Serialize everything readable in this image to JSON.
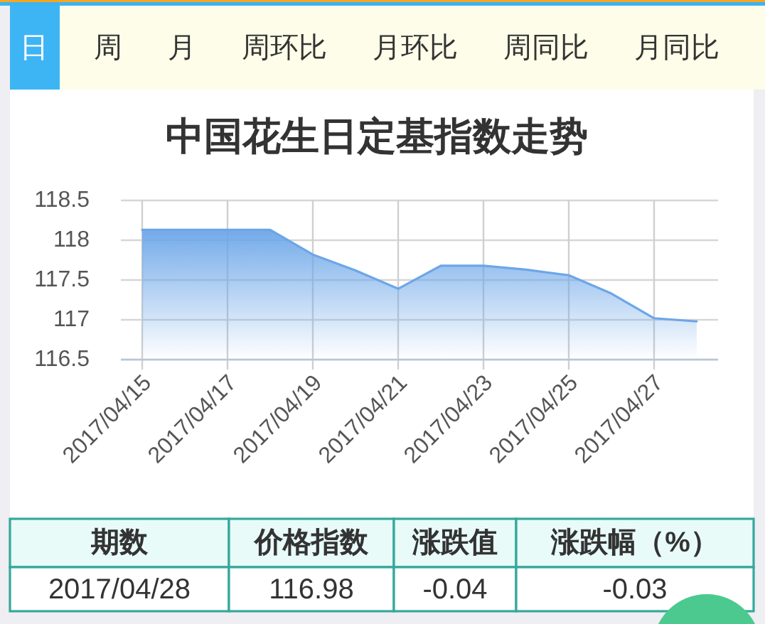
{
  "chart_data": [
    {
      "type": "other",
      "annotations": [
        "日",
        "周",
        "月",
        "周环比",
        "月环比",
        "周同比",
        "月同比"
      ]
    },
    {
      "type": "area",
      "title": "中国花生日定基指数走势",
      "x": [
        "2017-04-15",
        "2017-04-16",
        "2017-04-17",
        "2017-04-18",
        "2017-04-19",
        "2017-04-20",
        "2017-04-21",
        "2017-04-22",
        "2017-04-23",
        "2017-04-24",
        "2017-04-25",
        "2017-04-26",
        "2017-04-27",
        "2017-04-28"
      ],
      "series": [
        {
          "color": "#6ca6e8",
          "values": [
            118.13,
            118.13,
            118.13,
            118.13,
            117.82,
            117.62,
            117.39,
            117.68,
            117.68,
            117.63,
            117.56,
            117.33,
            117.02,
            116.98
          ]
        }
      ],
      "xlim": [
        "2017-04-14T12:00",
        "2017-04-28T12:00"
      ],
      "xticks": [
        {
          "value": "2017-04-15",
          "label": "2017/04/15"
        },
        {
          "value": "2017-04-17",
          "label": "2017/04/17"
        },
        {
          "value": "2017-04-19",
          "label": "2017/04/19"
        },
        {
          "value": "2017-04-21",
          "label": "2017/04/21"
        },
        {
          "value": "2017-04-23",
          "label": "2017/04/23"
        },
        {
          "value": "2017-04-25",
          "label": "2017/04/25"
        },
        {
          "value": "2017-04-27",
          "label": "2017/04/27"
        }
      ],
      "ylim": [
        116.5,
        118.5
      ],
      "yticks": [
        116.5,
        117,
        117.5,
        118,
        118.5
      ],
      "grid": true
    },
    {
      "type": "other",
      "categories": [
        "期数",
        "价格指数",
        "涨跌值",
        "涨跌幅（%）"
      ],
      "annotations": [
        "2017/04/28",
        "116.98",
        "-0.04",
        "-0.03"
      ]
    }
  ]
}
